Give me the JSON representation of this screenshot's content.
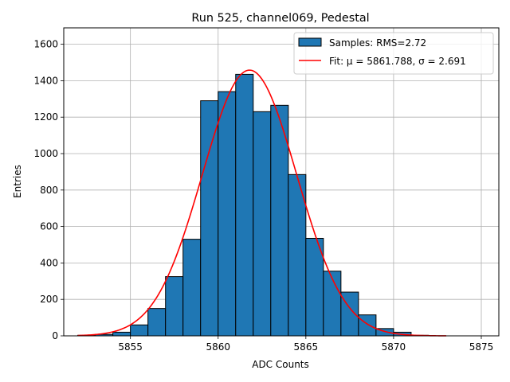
{
  "chart_data": {
    "type": "bar",
    "title": "Run 525, channel069, Pedestal",
    "xlabel": "ADC Counts",
    "ylabel": "Entries",
    "xlim": [
      5851.2,
      5876.0
    ],
    "ylim": [
      0,
      1690
    ],
    "x_ticks": [
      5855,
      5860,
      5865,
      5870,
      5875
    ],
    "y_ticks": [
      0,
      200,
      400,
      600,
      800,
      1000,
      1200,
      1400,
      1600
    ],
    "grid": true,
    "legend_position": "top-right",
    "bin_width": 1,
    "bins": [
      {
        "left": 5852,
        "count": 3
      },
      {
        "left": 5853,
        "count": 8
      },
      {
        "left": 5854,
        "count": 20
      },
      {
        "left": 5855,
        "count": 60
      },
      {
        "left": 5856,
        "count": 150
      },
      {
        "left": 5857,
        "count": 325
      },
      {
        "left": 5858,
        "count": 530
      },
      {
        "left": 5859,
        "count": 1290
      },
      {
        "left": 5860,
        "count": 1340
      },
      {
        "left": 5861,
        "count": 1435
      },
      {
        "left": 5862,
        "count": 1230
      },
      {
        "left": 5863,
        "count": 1265
      },
      {
        "left": 5864,
        "count": 885
      },
      {
        "left": 5865,
        "count": 535
      },
      {
        "left": 5866,
        "count": 355
      },
      {
        "left": 5867,
        "count": 240
      },
      {
        "left": 5868,
        "count": 115
      },
      {
        "left": 5869,
        "count": 40
      },
      {
        "left": 5870,
        "count": 20
      },
      {
        "left": 5871,
        "count": 3
      }
    ],
    "fit": {
      "mu": 5861.788,
      "sigma": 2.691,
      "amplitude": 1458,
      "x_range": [
        5852,
        5873
      ]
    },
    "series": [
      {
        "name": "Samples: RMS=2.72",
        "kind": "histogram",
        "color": "#1f77b4"
      },
      {
        "name": "Fit: μ = 5861.788, σ = 2.691",
        "kind": "line",
        "color": "#ff0000"
      }
    ]
  }
}
